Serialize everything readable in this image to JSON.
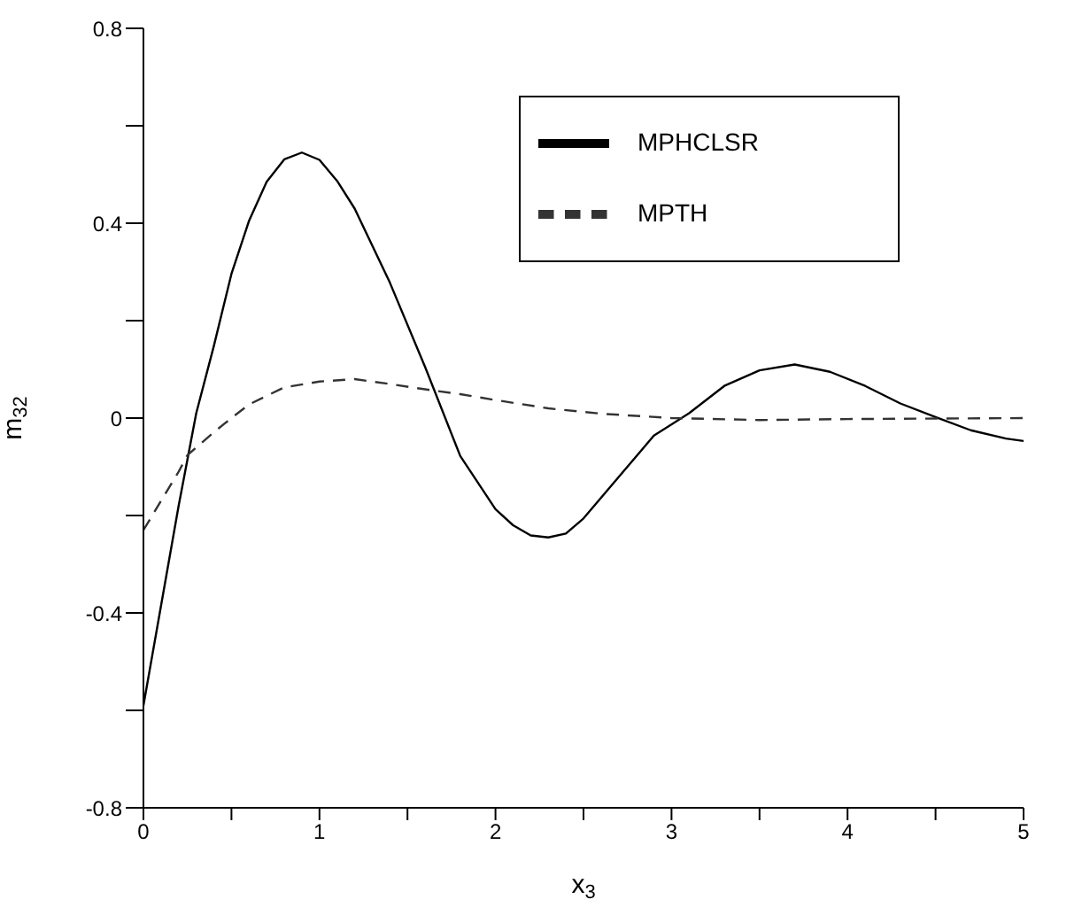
{
  "chart_data": {
    "type": "line",
    "xlabel": "x$_{3}$",
    "ylabel": "m$_{32}$",
    "xlim": [
      0,
      5
    ],
    "ylim": [
      -0.8,
      0.8
    ],
    "xticks": [
      0,
      {
        "value": 0.5,
        "label": null
      },
      1,
      {
        "value": 1.5,
        "label": null
      },
      2,
      {
        "value": 2.5,
        "label": null
      },
      3,
      {
        "value": 3.5,
        "label": null
      },
      4,
      {
        "value": 4.5,
        "label": null
      },
      5
    ],
    "yticks": [
      -0.8,
      {
        "value": -0.6,
        "label": null
      },
      -0.4,
      {
        "value": -0.2,
        "label": null
      },
      0,
      {
        "value": 0.2,
        "label": null
      },
      0.4,
      {
        "value": 0.6,
        "label": null
      },
      0.8
    ],
    "grid": false,
    "legend": "top right",
    "marker": "none",
    "series": [
      {
        "name": "MPHCLSR",
        "color": "#000000",
        "line_style": "solid",
        "x": [
          0,
          0.1,
          0.2,
          0.3,
          0.4,
          0.5,
          0.6,
          0.7,
          0.8,
          0.9,
          1.0,
          1.1,
          1.2,
          1.4,
          1.6,
          1.8,
          2.0,
          2.1,
          2.2,
          2.3,
          2.4,
          2.5,
          2.7,
          2.9,
          3.1,
          3.3,
          3.5,
          3.7,
          3.9,
          4.1,
          4.3,
          4.5,
          4.7,
          4.9,
          5
        ],
        "values": [
          -0.59,
          -0.385,
          -0.18,
          0.01,
          0.148,
          0.296,
          0.405,
          0.485,
          0.531,
          0.545,
          0.53,
          0.487,
          0.43,
          0.278,
          0.105,
          -0.078,
          -0.187,
          -0.22,
          -0.241,
          -0.245,
          -0.237,
          -0.206,
          -0.121,
          -0.036,
          0.01,
          0.066,
          0.098,
          0.11,
          0.095,
          0.066,
          0.03,
          0.002,
          -0.025,
          -0.042,
          -0.047
        ]
      },
      {
        "name": "MPTH",
        "color": "#333333",
        "line_style": "dashed",
        "x": [
          0,
          0.1,
          0.2,
          0.25,
          0.4,
          0.5,
          0.6,
          0.8,
          1.0,
          1.2,
          1.4,
          1.6,
          1.8,
          2.0,
          2.3,
          2.6,
          3.0,
          3.5,
          4.0,
          5
        ],
        "values": [
          -0.23,
          -0.17,
          -0.11,
          -0.076,
          -0.029,
          0.0,
          0.028,
          0.063,
          0.075,
          0.08,
          0.07,
          0.059,
          0.049,
          0.037,
          0.02,
          0.009,
          0.0,
          -0.004,
          -0.002,
          0.0
        ]
      }
    ]
  }
}
